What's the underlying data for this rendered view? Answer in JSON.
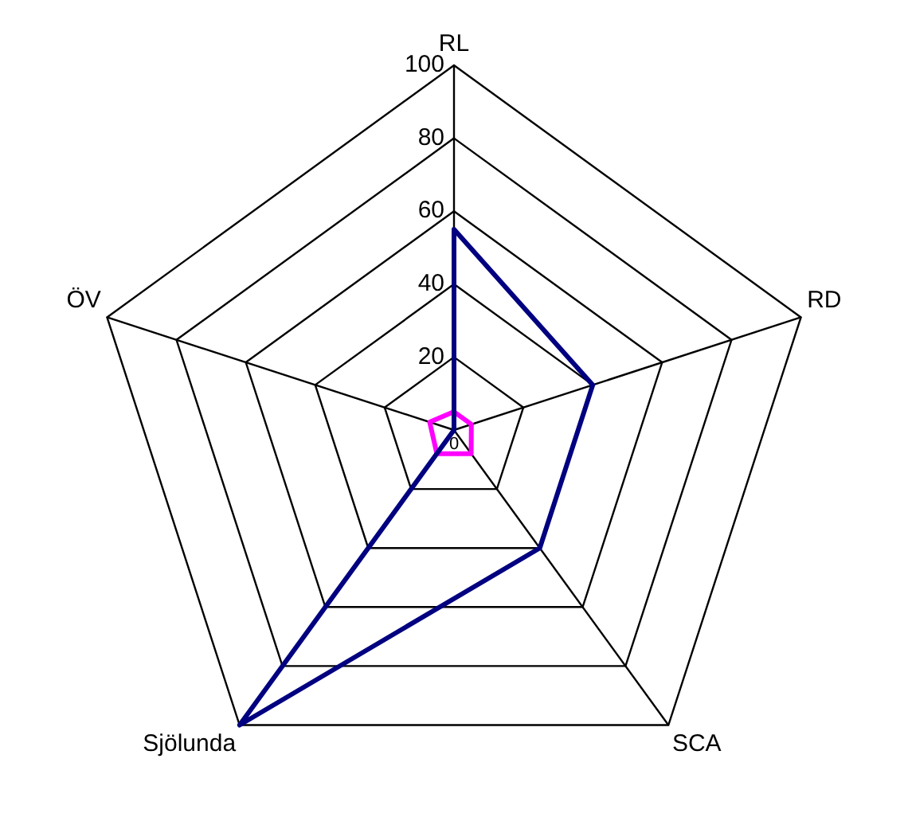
{
  "chart_data": {
    "type": "radar",
    "categories": [
      "RL",
      "RD",
      "SCA",
      "Sjölunda",
      "ÖV"
    ],
    "ylim": [
      0,
      100
    ],
    "yticks": [
      0,
      20,
      40,
      60,
      80,
      100
    ],
    "grid": true,
    "legend": false,
    "marker": "none",
    "series": [
      {
        "color": "#000080",
        "values": [
          55,
          40,
          40,
          100,
          0
        ]
      },
      {
        "color": "#ff00ff",
        "values": [
          5,
          5,
          8,
          8,
          7
        ]
      }
    ]
  }
}
